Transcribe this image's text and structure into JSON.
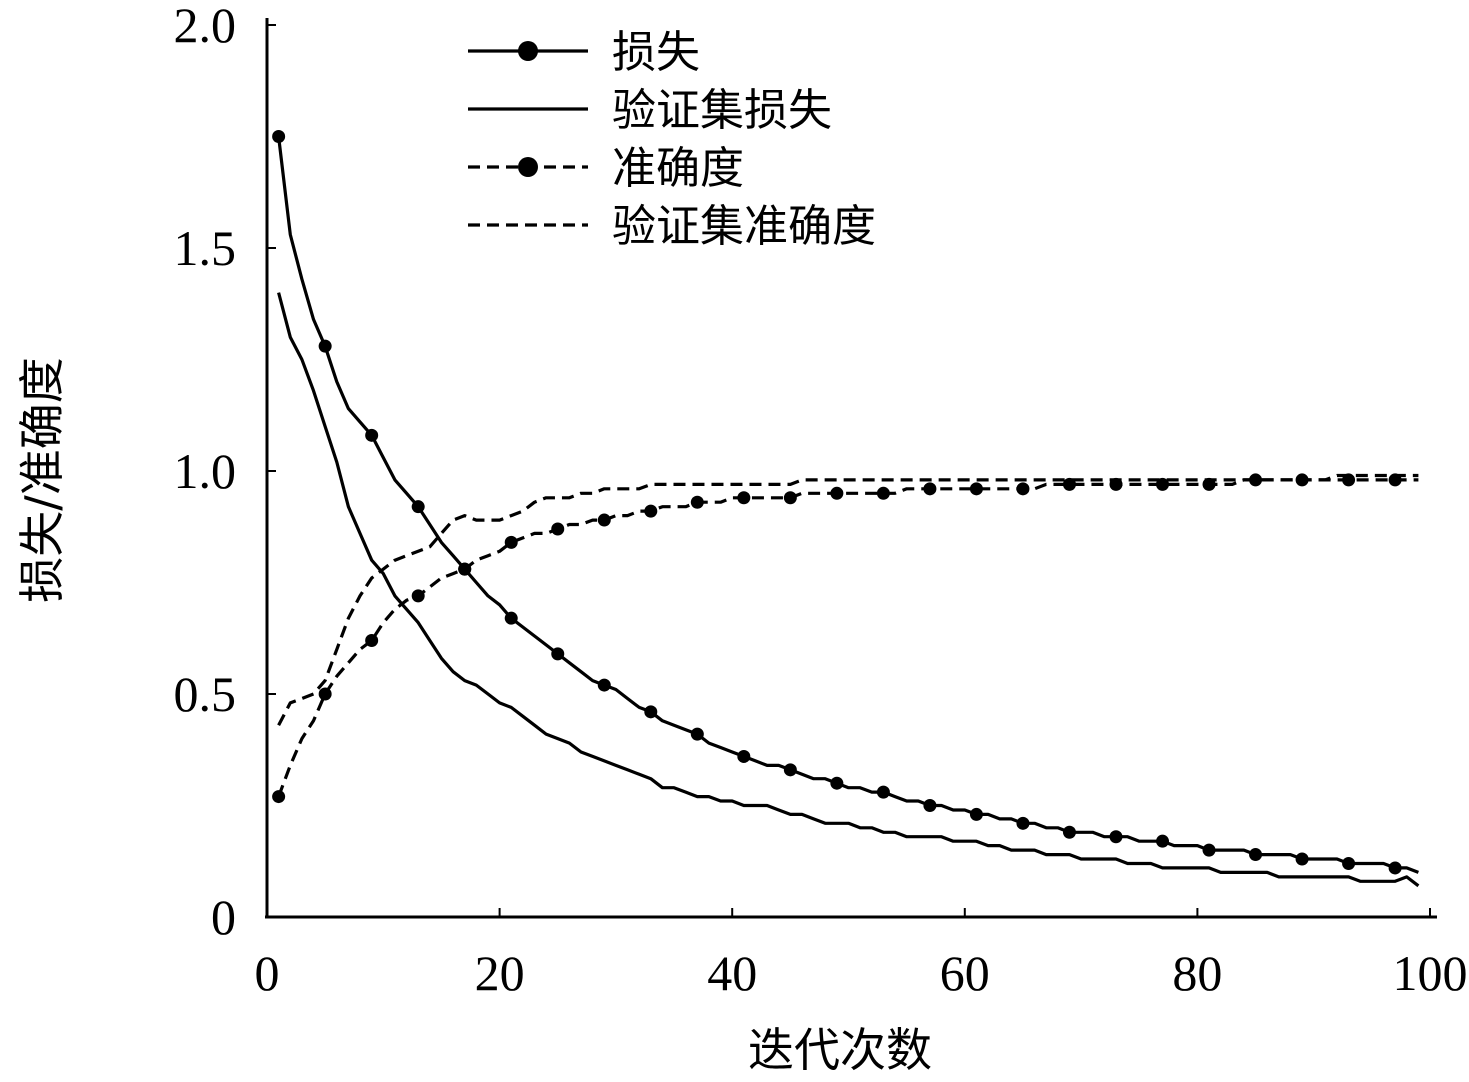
{
  "chart_data": {
    "type": "line",
    "title": "",
    "xlabel": "迭代次数",
    "ylabel": "损失/准确度",
    "xlim": [
      0,
      100
    ],
    "ylim": [
      0,
      2.0
    ],
    "xticks": [
      "0",
      "20",
      "40",
      "60",
      "80",
      "100"
    ],
    "yticks": [
      "0",
      "0.5",
      "1.0",
      "1.5",
      "2.0"
    ],
    "grid": false,
    "legend_position": "top",
    "series": [
      {
        "name": "损失",
        "line": "solid",
        "marker": "circle",
        "x": [
          1,
          2,
          3,
          4,
          5,
          6,
          7,
          8,
          9,
          10,
          11,
          12,
          13,
          14,
          15,
          16,
          17,
          18,
          19,
          20,
          21,
          22,
          23,
          24,
          25,
          26,
          27,
          28,
          29,
          30,
          31,
          32,
          33,
          34,
          35,
          36,
          37,
          38,
          39,
          40,
          41,
          42,
          43,
          44,
          45,
          46,
          47,
          48,
          49,
          50,
          51,
          52,
          53,
          54,
          55,
          56,
          57,
          58,
          59,
          60,
          61,
          62,
          63,
          64,
          65,
          66,
          67,
          68,
          69,
          70,
          71,
          72,
          73,
          74,
          75,
          76,
          77,
          78,
          79,
          80,
          81,
          82,
          83,
          84,
          85,
          86,
          87,
          88,
          89,
          90,
          91,
          92,
          93,
          94,
          95,
          96,
          97,
          98,
          99
        ],
        "y": [
          1.75,
          1.53,
          1.43,
          1.34,
          1.28,
          1.2,
          1.14,
          1.11,
          1.08,
          1.03,
          0.98,
          0.95,
          0.92,
          0.88,
          0.84,
          0.81,
          0.78,
          0.75,
          0.72,
          0.7,
          0.67,
          0.65,
          0.63,
          0.61,
          0.59,
          0.57,
          0.55,
          0.53,
          0.52,
          0.51,
          0.49,
          0.47,
          0.46,
          0.44,
          0.43,
          0.42,
          0.41,
          0.39,
          0.38,
          0.37,
          0.36,
          0.35,
          0.34,
          0.34,
          0.33,
          0.32,
          0.31,
          0.31,
          0.3,
          0.29,
          0.29,
          0.28,
          0.28,
          0.27,
          0.26,
          0.26,
          0.25,
          0.25,
          0.24,
          0.24,
          0.23,
          0.23,
          0.22,
          0.22,
          0.21,
          0.21,
          0.2,
          0.2,
          0.19,
          0.19,
          0.19,
          0.18,
          0.18,
          0.18,
          0.17,
          0.17,
          0.17,
          0.16,
          0.16,
          0.16,
          0.15,
          0.15,
          0.15,
          0.15,
          0.14,
          0.14,
          0.14,
          0.14,
          0.13,
          0.13,
          0.13,
          0.13,
          0.12,
          0.12,
          0.12,
          0.12,
          0.11,
          0.11,
          0.1
        ],
        "marker_x": [
          1,
          5,
          9,
          13,
          17,
          21,
          25,
          29,
          33,
          37,
          41,
          45,
          49,
          53,
          57,
          61,
          65,
          69,
          73,
          77,
          81,
          85,
          89,
          93,
          97
        ]
      },
      {
        "name": "验证集损失",
        "line": "solid",
        "marker": "none",
        "x": [
          1,
          2,
          3,
          4,
          5,
          6,
          7,
          8,
          9,
          10,
          11,
          12,
          13,
          14,
          15,
          16,
          17,
          18,
          19,
          20,
          21,
          22,
          23,
          24,
          25,
          26,
          27,
          28,
          29,
          30,
          31,
          32,
          33,
          34,
          35,
          36,
          37,
          38,
          39,
          40,
          41,
          42,
          43,
          44,
          45,
          46,
          47,
          48,
          49,
          50,
          51,
          52,
          53,
          54,
          55,
          56,
          57,
          58,
          59,
          60,
          61,
          62,
          63,
          64,
          65,
          66,
          67,
          68,
          69,
          70,
          71,
          72,
          73,
          74,
          75,
          76,
          77,
          78,
          79,
          80,
          81,
          82,
          83,
          84,
          85,
          86,
          87,
          88,
          89,
          90,
          91,
          92,
          93,
          94,
          95,
          96,
          97,
          98,
          99
        ],
        "y": [
          1.4,
          1.3,
          1.25,
          1.18,
          1.1,
          1.02,
          0.92,
          0.86,
          0.8,
          0.77,
          0.72,
          0.69,
          0.66,
          0.62,
          0.58,
          0.55,
          0.53,
          0.52,
          0.5,
          0.48,
          0.47,
          0.45,
          0.43,
          0.41,
          0.4,
          0.39,
          0.37,
          0.36,
          0.35,
          0.34,
          0.33,
          0.32,
          0.31,
          0.29,
          0.29,
          0.28,
          0.27,
          0.27,
          0.26,
          0.26,
          0.25,
          0.25,
          0.25,
          0.24,
          0.23,
          0.23,
          0.22,
          0.21,
          0.21,
          0.21,
          0.2,
          0.2,
          0.19,
          0.19,
          0.18,
          0.18,
          0.18,
          0.18,
          0.17,
          0.17,
          0.17,
          0.16,
          0.16,
          0.15,
          0.15,
          0.15,
          0.14,
          0.14,
          0.14,
          0.13,
          0.13,
          0.13,
          0.13,
          0.12,
          0.12,
          0.12,
          0.11,
          0.11,
          0.11,
          0.11,
          0.11,
          0.1,
          0.1,
          0.1,
          0.1,
          0.1,
          0.09,
          0.09,
          0.09,
          0.09,
          0.09,
          0.09,
          0.09,
          0.08,
          0.08,
          0.08,
          0.08,
          0.09,
          0.07
        ]
      },
      {
        "name": "准确度",
        "line": "dashed",
        "marker": "circle",
        "x": [
          1,
          2,
          3,
          4,
          5,
          6,
          7,
          8,
          9,
          10,
          11,
          12,
          13,
          14,
          15,
          16,
          17,
          18,
          19,
          20,
          21,
          22,
          23,
          24,
          25,
          26,
          27,
          28,
          29,
          30,
          31,
          32,
          33,
          34,
          35,
          36,
          37,
          38,
          39,
          40,
          41,
          42,
          43,
          44,
          45,
          46,
          47,
          48,
          49,
          50,
          51,
          52,
          53,
          54,
          55,
          56,
          57,
          58,
          59,
          60,
          61,
          62,
          63,
          64,
          65,
          66,
          67,
          68,
          69,
          70,
          71,
          72,
          73,
          74,
          75,
          76,
          77,
          78,
          79,
          80,
          81,
          82,
          83,
          84,
          85,
          86,
          87,
          88,
          89,
          90,
          91,
          92,
          93,
          94,
          95,
          96,
          97,
          98,
          99
        ],
        "y": [
          0.27,
          0.34,
          0.4,
          0.44,
          0.5,
          0.54,
          0.57,
          0.6,
          0.62,
          0.66,
          0.69,
          0.71,
          0.72,
          0.74,
          0.76,
          0.77,
          0.78,
          0.8,
          0.81,
          0.82,
          0.84,
          0.85,
          0.86,
          0.86,
          0.87,
          0.88,
          0.88,
          0.89,
          0.89,
          0.9,
          0.9,
          0.91,
          0.91,
          0.92,
          0.92,
          0.92,
          0.93,
          0.93,
          0.93,
          0.94,
          0.94,
          0.94,
          0.94,
          0.94,
          0.94,
          0.95,
          0.95,
          0.95,
          0.95,
          0.95,
          0.95,
          0.95,
          0.95,
          0.95,
          0.96,
          0.96,
          0.96,
          0.96,
          0.96,
          0.96,
          0.96,
          0.96,
          0.96,
          0.96,
          0.96,
          0.96,
          0.97,
          0.97,
          0.97,
          0.97,
          0.97,
          0.97,
          0.97,
          0.97,
          0.97,
          0.97,
          0.97,
          0.97,
          0.97,
          0.97,
          0.97,
          0.97,
          0.97,
          0.98,
          0.98,
          0.98,
          0.98,
          0.98,
          0.98,
          0.98,
          0.98,
          0.98,
          0.98,
          0.98,
          0.98,
          0.98,
          0.98,
          0.98,
          0.98
        ],
        "marker_x": [
          1,
          5,
          9,
          13,
          17,
          21,
          25,
          29,
          33,
          37,
          41,
          45,
          49,
          53,
          57,
          61,
          65,
          69,
          73,
          77,
          81,
          85,
          89,
          93,
          97
        ]
      },
      {
        "name": "验证集准确度",
        "line": "dashed",
        "marker": "none",
        "x": [
          1,
          2,
          3,
          4,
          5,
          6,
          7,
          8,
          9,
          10,
          11,
          12,
          13,
          14,
          15,
          16,
          17,
          18,
          19,
          20,
          21,
          22,
          23,
          24,
          25,
          26,
          27,
          28,
          29,
          30,
          31,
          32,
          33,
          34,
          35,
          36,
          37,
          38,
          39,
          40,
          41,
          42,
          43,
          44,
          45,
          46,
          47,
          48,
          49,
          50,
          51,
          52,
          53,
          54,
          55,
          56,
          57,
          58,
          59,
          60,
          61,
          62,
          63,
          64,
          65,
          66,
          67,
          68,
          69,
          70,
          71,
          72,
          73,
          74,
          75,
          76,
          77,
          78,
          79,
          80,
          81,
          82,
          83,
          84,
          85,
          86,
          87,
          88,
          89,
          90,
          91,
          92,
          93,
          94,
          95,
          96,
          97,
          98,
          99
        ],
        "y": [
          0.43,
          0.48,
          0.49,
          0.5,
          0.53,
          0.6,
          0.67,
          0.72,
          0.76,
          0.78,
          0.8,
          0.81,
          0.82,
          0.83,
          0.86,
          0.89,
          0.9,
          0.89,
          0.89,
          0.89,
          0.9,
          0.91,
          0.93,
          0.94,
          0.94,
          0.94,
          0.95,
          0.95,
          0.96,
          0.96,
          0.96,
          0.96,
          0.97,
          0.97,
          0.97,
          0.97,
          0.97,
          0.97,
          0.97,
          0.97,
          0.97,
          0.97,
          0.97,
          0.97,
          0.97,
          0.98,
          0.98,
          0.98,
          0.98,
          0.98,
          0.98,
          0.98,
          0.98,
          0.98,
          0.98,
          0.98,
          0.98,
          0.98,
          0.98,
          0.98,
          0.98,
          0.98,
          0.98,
          0.98,
          0.98,
          0.98,
          0.98,
          0.98,
          0.98,
          0.98,
          0.98,
          0.98,
          0.98,
          0.98,
          0.98,
          0.98,
          0.98,
          0.98,
          0.98,
          0.98,
          0.98,
          0.98,
          0.98,
          0.98,
          0.98,
          0.98,
          0.98,
          0.98,
          0.98,
          0.98,
          0.98,
          0.99,
          0.99,
          0.99,
          0.99,
          0.99,
          0.99,
          0.99,
          0.99
        ]
      }
    ]
  }
}
